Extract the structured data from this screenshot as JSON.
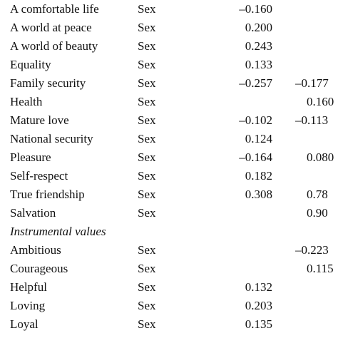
{
  "table": {
    "rows": [
      [
        "A comfortable life",
        "Sex",
        "–0.160",
        ""
      ],
      [
        "A world at peace",
        "Sex",
        "0.200",
        ""
      ],
      [
        "A world of beauty",
        "Sex",
        "0.243",
        ""
      ],
      [
        "Equality",
        "Sex",
        "0.133",
        ""
      ],
      [
        "Family security",
        "Sex",
        "–0.257",
        "–0.177"
      ],
      [
        "Health",
        "Sex",
        "",
        "0.160"
      ],
      [
        "Mature love",
        "Sex",
        "–0.102",
        "–0.113"
      ],
      [
        "National security",
        "Sex",
        "0.124",
        ""
      ],
      [
        "Pleasure",
        "Sex",
        "–0.164",
        "0.080"
      ],
      [
        "Self-respect",
        "Sex",
        "0.182",
        ""
      ],
      [
        "True friendship",
        "Sex",
        "0.308",
        "0.78"
      ],
      [
        "Salvation",
        "Sex",
        "",
        "0.90"
      ],
      [
        "Instrumental values",
        "",
        "",
        ""
      ],
      [
        "Ambitious",
        "Sex",
        "",
        "–0.223"
      ],
      [
        "Courageous",
        "Sex",
        "",
        "0.115"
      ],
      [
        "Helpful",
        "Sex",
        "0.132",
        ""
      ],
      [
        "Loving",
        "Sex",
        "0.203",
        ""
      ],
      [
        "Loyal",
        "Sex",
        "0.135",
        ""
      ]
    ]
  }
}
